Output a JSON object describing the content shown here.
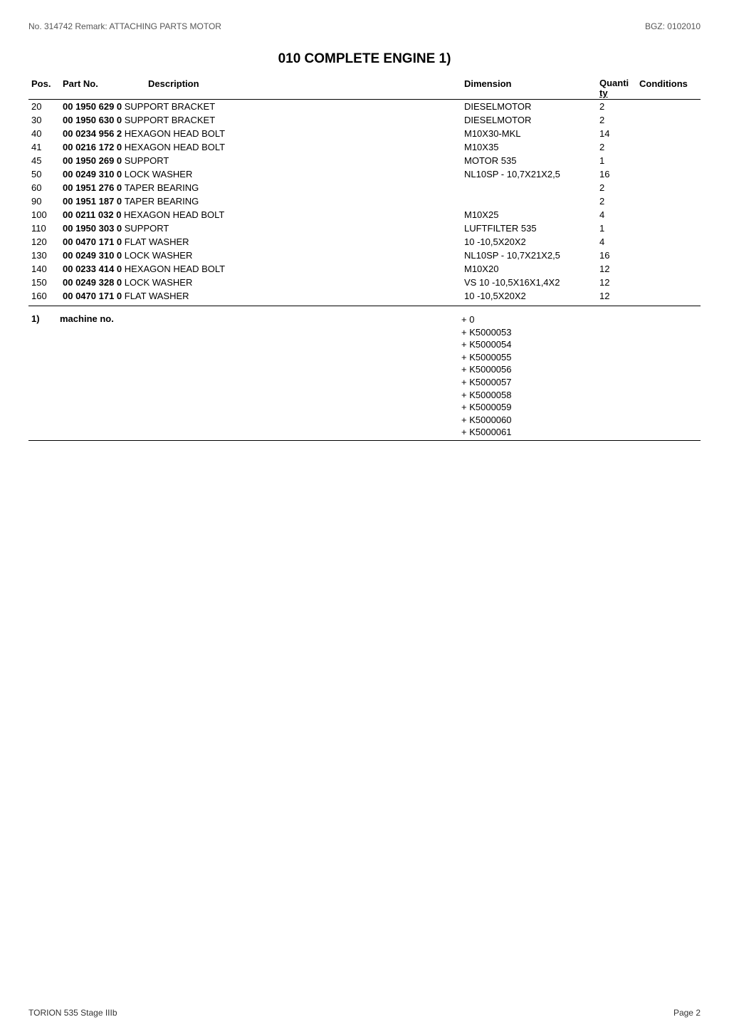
{
  "header": {
    "left": "No. 314742   Remark: ATTACHING PARTS MOTOR",
    "right": "BGZ: 0102010"
  },
  "title": "010 COMPLETE ENGINE  1)",
  "columns": {
    "pos": "Pos.",
    "partno": "Part No.",
    "desc": "Description",
    "dim": "Dimension",
    "qty_top": "Quanti",
    "qty_bot": "ty",
    "cond": "Conditions"
  },
  "rows": [
    {
      "pos": "20",
      "part": "00 1950 629 0",
      "desc": "SUPPORT BRACKET",
      "dim": "DIESELMOTOR",
      "qty": "2",
      "cond": ""
    },
    {
      "pos": "30",
      "part": "00 1950 630 0",
      "desc": "SUPPORT BRACKET",
      "dim": "DIESELMOTOR",
      "qty": "2",
      "cond": ""
    },
    {
      "pos": "40",
      "part": "00 0234 956 2",
      "desc": "HEXAGON HEAD BOLT",
      "dim": "M10X30-MKL",
      "qty": "14",
      "cond": ""
    },
    {
      "pos": "41",
      "part": "00 0216 172 0",
      "desc": "HEXAGON HEAD BOLT",
      "dim": "M10X35",
      "qty": "2",
      "cond": ""
    },
    {
      "pos": "45",
      "part": "00 1950 269 0",
      "desc": "SUPPORT",
      "dim": "MOTOR 535",
      "qty": "1",
      "cond": ""
    },
    {
      "pos": "50",
      "part": "00 0249 310 0",
      "desc": "LOCK WASHER",
      "dim": "NL10SP - 10,7X21X2,5",
      "qty": "16",
      "cond": ""
    },
    {
      "pos": "60",
      "part": "00 1951 276 0",
      "desc": "TAPER BEARING",
      "dim": "",
      "qty": "2",
      "cond": ""
    },
    {
      "pos": "90",
      "part": "00 1951 187 0",
      "desc": "TAPER BEARING",
      "dim": "",
      "qty": "2",
      "cond": ""
    },
    {
      "pos": "100",
      "part": "00 0211 032 0",
      "desc": "HEXAGON HEAD BOLT",
      "dim": "M10X25",
      "qty": "4",
      "cond": ""
    },
    {
      "pos": "110",
      "part": "00 1950 303 0",
      "desc": "SUPPORT",
      "dim": "LUFTFILTER 535",
      "qty": "1",
      "cond": ""
    },
    {
      "pos": "120",
      "part": "00 0470 171 0",
      "desc": "FLAT WASHER",
      "dim": "10 -10,5X20X2",
      "qty": "4",
      "cond": ""
    },
    {
      "pos": "130",
      "part": "00 0249 310 0",
      "desc": "LOCK WASHER",
      "dim": "NL10SP - 10,7X21X2,5",
      "qty": "16",
      "cond": ""
    },
    {
      "pos": "140",
      "part": "00 0233 414 0",
      "desc": "HEXAGON HEAD BOLT",
      "dim": "M10X20",
      "qty": "12",
      "cond": ""
    },
    {
      "pos": "150",
      "part": "00 0249 328 0",
      "desc": "LOCK WASHER",
      "dim": "VS 10 -10,5X16X1,4X2",
      "qty": "12",
      "cond": ""
    },
    {
      "pos": "160",
      "part": "00 0470 171 0",
      "desc": "FLAT WASHER",
      "dim": "10 -10,5X20X2",
      "qty": "12",
      "cond": ""
    }
  ],
  "machine": {
    "idx": "1)",
    "label": "machine no.",
    "values": [
      "+ 0",
      "+ K5000053",
      "+ K5000054",
      "+ K5000055",
      "+ K5000056",
      "+ K5000057",
      "+ K5000058",
      "+ K5000059",
      "+ K5000060",
      "+ K5000061"
    ]
  },
  "footer": {
    "left": "TORION 535 Stage IIIb",
    "right": "Page 2"
  }
}
